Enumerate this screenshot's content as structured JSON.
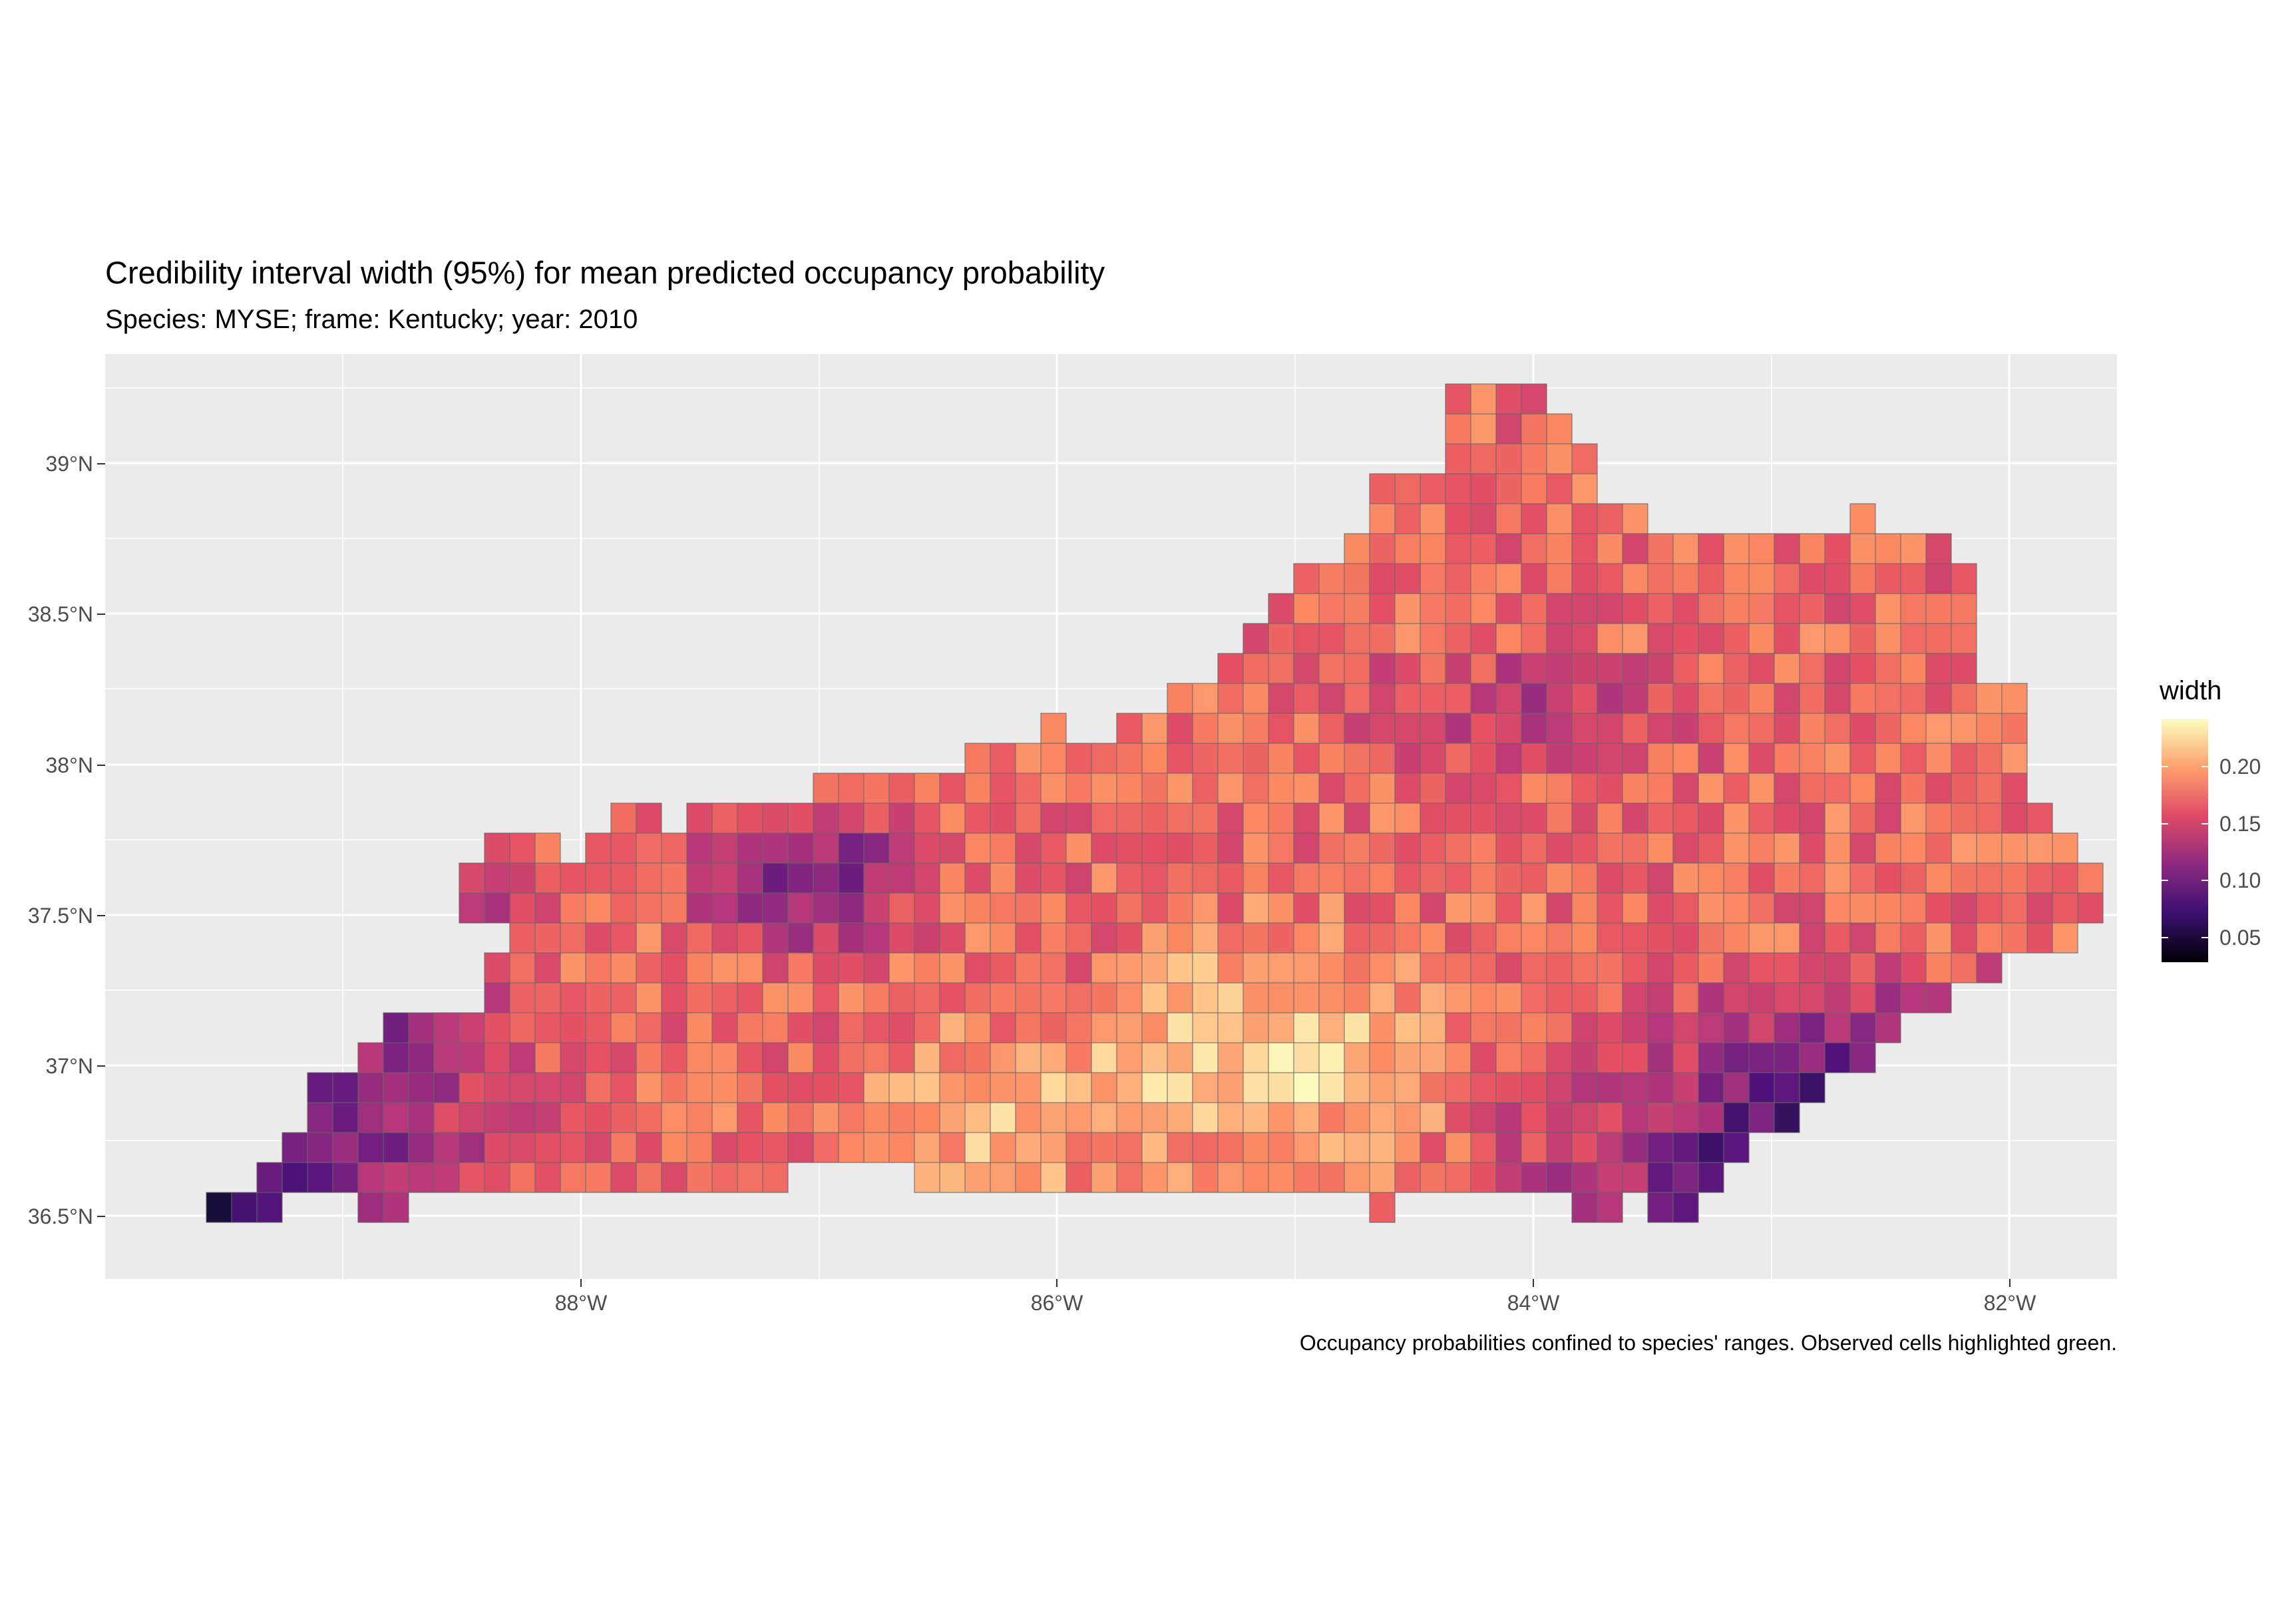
{
  "title": "Credibility interval width (95%) for mean predicted occupancy probability",
  "subtitle": "Species: MYSE; frame: Kentucky; year: 2010",
  "caption": "Occupancy probabilities confined to species' ranges. Observed cells highlighted green.",
  "axes": {
    "y_ticks": [
      "39°N",
      "38.5°N",
      "38°N",
      "37.5°N",
      "37°N",
      "36.5°N"
    ],
    "x_ticks": [
      "88°W",
      "86°W",
      "84°W",
      "82°W"
    ]
  },
  "legend": {
    "title": "width",
    "labels": [
      "0.20",
      "0.15",
      "0.10",
      "0.05"
    ],
    "colors": [
      "#fcfdbf",
      "#fe9f6d",
      "#de4968",
      "#8c2981",
      "#3b0f70",
      "#000004"
    ]
  },
  "map": {
    "region": "Kentucky",
    "grid_color": "#ffffff",
    "cell_border_color": "#666666",
    "observed_border_color": "#2e8b57"
  }
}
